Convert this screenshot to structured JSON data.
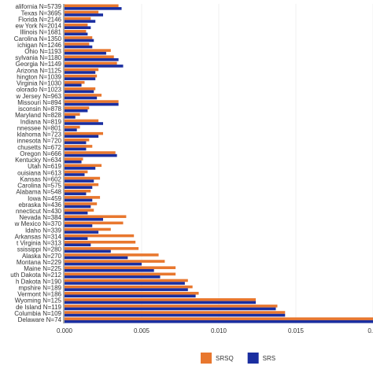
{
  "chart_data": {
    "type": "bar",
    "orientation": "horizontal",
    "categories": [
      "alifornia N=5739",
      "Texas N=3695",
      "Florida N=2146",
      "ew York N=2014",
      "Illinois N=1681",
      "Carolina N=1350",
      "ichigan N=1246",
      "Ohio N=1193",
      "sylvania N=1180",
      "Georgia N=1149",
      "Arizona N=1125",
      "hington N=1039",
      "Virginia N=1030",
      "olorado N=1023",
      "w Jersey N=963",
      "Missouri N=894",
      "isconsin N=878",
      "Maryland N=828",
      "Indiana N=819",
      "nnessee N=801",
      "klahoma N=723",
      "innesota N=720",
      "chusetts N=672",
      "Oregon N=666",
      "Kentucky N=634",
      "Utah N=619",
      "ouisiana N=613",
      "Kansas N=602",
      "Carolina N=575",
      "Alabama N=548",
      "Iowa N=459",
      "ebraska N=436",
      "nnecticut N=430",
      "Nevada N=384",
      "w Mexico N=370",
      "Idaho N=339",
      "Arkansas N=314",
      "t Virginia N=313",
      "ssissippi N=280",
      "Alaska N=270",
      "Montana N=229",
      "Maine N=225",
      "uth Dakota N=212",
      "h Dakota N=190",
      "mpshire N=189",
      "Vermont N=186",
      "Wyoming N=125",
      "de Island N=119",
      "Columbia N=109",
      "Delaware N=74"
    ],
    "series": [
      {
        "name": "SRSQ",
        "color": "#e8772e",
        "values": [
          0.0035,
          0.0022,
          0.0017,
          0.0015,
          0.0014,
          0.0018,
          0.0016,
          0.003,
          0.0032,
          0.0034,
          0.0022,
          0.0021,
          0.0013,
          0.002,
          0.0024,
          0.0035,
          0.0016,
          0.001,
          0.0022,
          0.001,
          0.0025,
          0.0016,
          0.0018,
          0.0033,
          0.0012,
          0.0024,
          0.0015,
          0.0023,
          0.0022,
          0.0017,
          0.0023,
          0.0021,
          0.0019,
          0.004,
          0.0038,
          0.003,
          0.0045,
          0.0046,
          0.0048,
          0.0061,
          0.0065,
          0.0072,
          0.0072,
          0.008,
          0.0083,
          0.0087,
          0.0124,
          0.0138,
          0.0143,
          0.02
        ]
      },
      {
        "name": "SRS",
        "color": "#1a2ea0",
        "values": [
          0.0037,
          0.0025,
          0.002,
          0.0017,
          0.0015,
          0.0019,
          0.0018,
          0.0027,
          0.0035,
          0.0038,
          0.002,
          0.002,
          0.0011,
          0.0019,
          0.0021,
          0.0035,
          0.0015,
          0.0007,
          0.0025,
          0.0008,
          0.0022,
          0.0014,
          0.0014,
          0.0034,
          0.0011,
          0.002,
          0.0013,
          0.0019,
          0.0018,
          0.0014,
          0.0018,
          0.0017,
          0.0015,
          0.0025,
          0.0018,
          0.0022,
          0.0015,
          0.0017,
          0.003,
          0.0041,
          0.005,
          0.0058,
          0.0062,
          0.0078,
          0.008,
          0.0085,
          0.0124,
          0.0137,
          0.0143,
          0.02
        ]
      }
    ],
    "xlim": [
      0,
      0.02
    ],
    "xticks": [
      {
        "value": 0,
        "label": "0.000"
      },
      {
        "value": 0.005,
        "label": "0.005"
      },
      {
        "value": 0.01,
        "label": "0.010"
      },
      {
        "value": 0.015,
        "label": "0.015"
      },
      {
        "value": 0.02,
        "label": "0."
      }
    ],
    "grid": true,
    "legend": "bottom"
  }
}
